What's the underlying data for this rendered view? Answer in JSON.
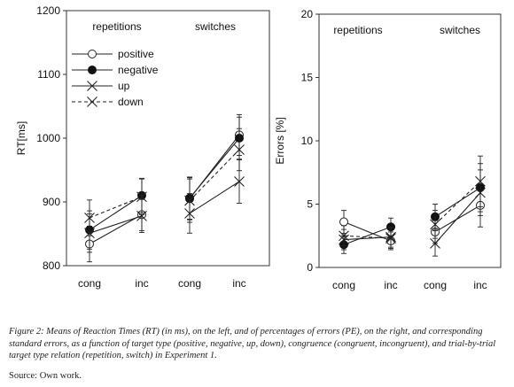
{
  "chart_data": [
    {
      "type": "line",
      "ylabel": "RT[ms]",
      "ylim": [
        800,
        1200
      ],
      "yticks": [
        800,
        900,
        1000,
        1100,
        1200
      ],
      "groups": [
        {
          "label": "repetitions",
          "categories": [
            "cong",
            "inc"
          ]
        },
        {
          "label": "switches",
          "categories": [
            "cong",
            "inc"
          ]
        }
      ],
      "legend": {
        "placement": "top-left"
      },
      "series": [
        {
          "name": "positive",
          "marker": "open-circle",
          "line": "solid",
          "groups": [
            {
              "values": [
                834,
                880
              ],
              "errors": [
                28,
                25
              ]
            },
            {
              "values": [
                905,
                1005
              ],
              "errors": [
                33,
                32
              ]
            }
          ]
        },
        {
          "name": "negative",
          "marker": "filled-circle",
          "line": "solid",
          "groups": [
            {
              "values": [
                856,
                910
              ],
              "errors": [
                30,
                27
              ]
            },
            {
              "values": [
                906,
                1000
              ],
              "errors": [
                33,
                33
              ]
            }
          ]
        },
        {
          "name": "up",
          "marker": "x",
          "line": "solid",
          "groups": [
            {
              "values": [
                851,
                878
              ],
              "errors": [
                30,
                26
              ]
            },
            {
              "values": [
                882,
                932
              ],
              "errors": [
                31,
                34
              ]
            }
          ]
        },
        {
          "name": "down",
          "marker": "x",
          "line": "dashed",
          "groups": [
            {
              "values": [
                875,
                908
              ],
              "errors": [
                28,
                28
              ]
            },
            {
              "values": [
                902,
                982
              ],
              "errors": [
                34,
                33
              ]
            }
          ]
        }
      ]
    },
    {
      "type": "line",
      "ylabel": "Errors [%]",
      "ylim": [
        0,
        20
      ],
      "yticks": [
        0,
        5,
        10,
        15,
        20
      ],
      "groups": [
        {
          "label": "repetitions",
          "categories": [
            "cong",
            "inc"
          ]
        },
        {
          "label": "switches",
          "categories": [
            "cong",
            "inc"
          ]
        }
      ],
      "series": [
        {
          "name": "positive",
          "marker": "open-circle",
          "line": "solid",
          "groups": [
            {
              "values": [
                3.6,
                2.1
              ],
              "errors": [
                0.9,
                0.7
              ]
            },
            {
              "values": [
                2.8,
                4.9
              ],
              "errors": [
                0.9,
                1.7
              ]
            }
          ]
        },
        {
          "name": "negative",
          "marker": "filled-circle",
          "line": "solid",
          "groups": [
            {
              "values": [
                1.8,
                3.2
              ],
              "errors": [
                0.7,
                0.7
              ]
            },
            {
              "values": [
                4.0,
                6.3
              ],
              "errors": [
                1.0,
                1.9
              ]
            }
          ]
        },
        {
          "name": "up",
          "marker": "x",
          "line": "solid",
          "groups": [
            {
              "values": [
                2.2,
                2.4
              ],
              "errors": [
                0.8,
                0.8
              ]
            },
            {
              "values": [
                1.9,
                5.9
              ],
              "errors": [
                1.0,
                1.8
              ]
            }
          ]
        },
        {
          "name": "down",
          "marker": "x",
          "line": "dashed",
          "groups": [
            {
              "values": [
                2.5,
                2.3
              ],
              "errors": [
                0.8,
                0.8
              ]
            },
            {
              "values": [
                3.4,
                6.8
              ],
              "errors": [
                1.1,
                2.0
              ]
            }
          ]
        }
      ]
    }
  ],
  "caption": "Figure 2: Means of Reaction Times (RT) (in ms), on the left, and of percentages of errors (PE), on the right, and corresponding standard errors, as a function of target type (positive, negative, up, down), congruence (congruent, incongruent), and trial-by-trial target type relation (repetition, switch) in Experiment 1.",
  "source": "Source: Own work."
}
